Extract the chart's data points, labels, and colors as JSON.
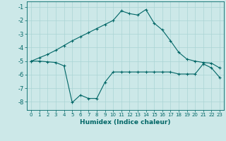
{
  "xlabel": "Humidex (Indice chaleur)",
  "background_color": "#cce8e8",
  "grid_color": "#aad4d4",
  "line_color": "#006666",
  "xlim": [
    -0.5,
    23.5
  ],
  "ylim": [
    -8.6,
    -0.6
  ],
  "yticks": [
    -8,
    -7,
    -6,
    -5,
    -4,
    -3,
    -2,
    -1
  ],
  "xticks": [
    0,
    1,
    2,
    3,
    4,
    5,
    6,
    7,
    8,
    9,
    10,
    11,
    12,
    13,
    14,
    15,
    16,
    17,
    18,
    19,
    20,
    21,
    22,
    23
  ],
  "line1_x": [
    0,
    1,
    2,
    3,
    4,
    5,
    6,
    7,
    8,
    9,
    10,
    11,
    12,
    13,
    14,
    15,
    16,
    17,
    18,
    19,
    20,
    21,
    22,
    23
  ],
  "line1_y": [
    -5.0,
    -4.75,
    -4.5,
    -4.2,
    -3.85,
    -3.5,
    -3.2,
    -2.9,
    -2.6,
    -2.3,
    -2.0,
    -1.3,
    -1.5,
    -1.6,
    -1.2,
    -2.2,
    -2.7,
    -3.5,
    -4.35,
    -4.85,
    -5.0,
    -5.1,
    -5.15,
    -5.5
  ],
  "line2_x": [
    0,
    1,
    2,
    3,
    4,
    5,
    6,
    7,
    8,
    9,
    10,
    11,
    12,
    13,
    14,
    15,
    16,
    17,
    18,
    19,
    20,
    21,
    22,
    23
  ],
  "line2_y": [
    -5.0,
    -5.0,
    -5.05,
    -5.1,
    -5.35,
    -8.05,
    -7.5,
    -7.75,
    -7.75,
    -6.55,
    -5.8,
    -5.8,
    -5.8,
    -5.8,
    -5.8,
    -5.8,
    -5.8,
    -5.8,
    -5.95,
    -5.95,
    -5.95,
    -5.2,
    -5.5,
    -6.2
  ]
}
